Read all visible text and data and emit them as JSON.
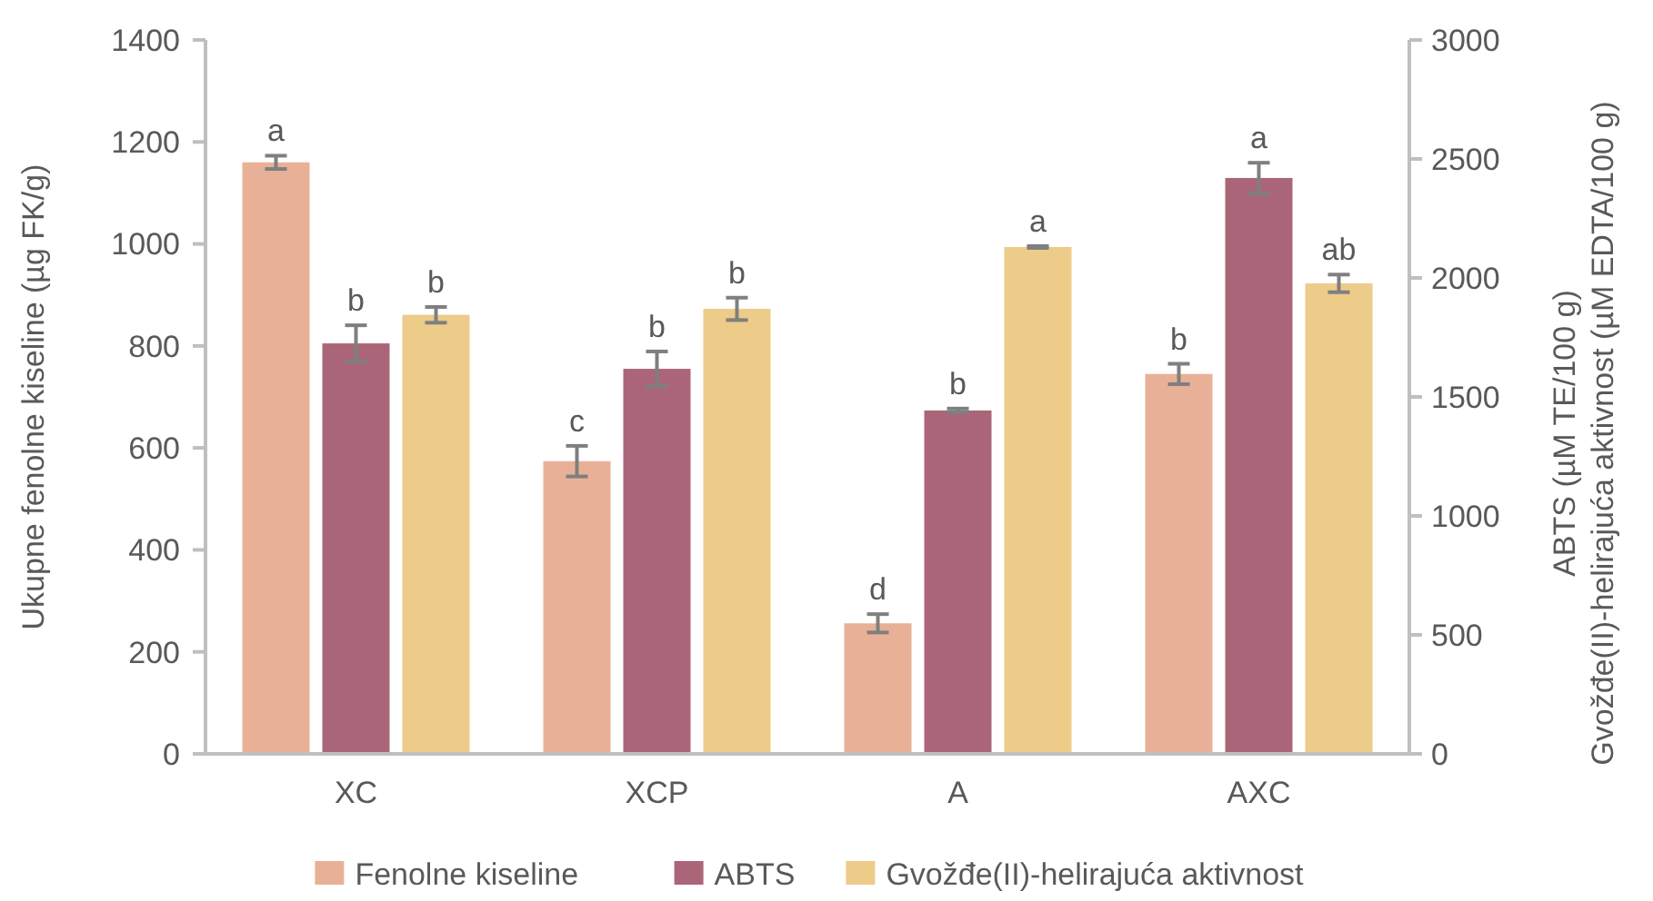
{
  "chart_data": {
    "type": "bar",
    "categories": [
      "XC",
      "XCP",
      "A",
      "AXC"
    ],
    "ylabel": "Ukupne fenolne kiseline (µg FK/g)",
    "y2label": "ABTS (µM TE/100 g)\nGvožđe(II)-helirajuća aktivnost (µM EDTA/100 g)",
    "ylim": [
      0,
      1400
    ],
    "yticks": [
      0,
      200,
      400,
      600,
      800,
      1000,
      1200,
      1400
    ],
    "y2lim": [
      0,
      3000
    ],
    "y2ticks": [
      0,
      500,
      1000,
      1500,
      2000,
      2500,
      3000
    ],
    "grid": false,
    "legend": "bottom",
    "series": [
      {
        "name": "Fenolne kiseline",
        "color": "#e8b197",
        "values": [
          1160,
          574,
          256,
          745
        ],
        "errors": [
          13,
          30,
          18,
          20
        ],
        "value_labels": [
          "a",
          "c",
          "d",
          "b"
        ]
      },
      {
        "name": "ABTS",
        "color": "#aa6678",
        "axis": "y2",
        "values": [
          1725,
          1618,
          1443,
          2420
        ],
        "errors": [
          76,
          73,
          8,
          64
        ],
        "value_labels": [
          "b",
          "b",
          "b",
          "a"
        ]
      },
      {
        "name": "Gvožđe(II)-helirajuća aktivnost",
        "color": "#edcb89",
        "axis": "y2",
        "values": [
          1845,
          1870,
          2130,
          1977
        ],
        "errors": [
          33,
          47,
          4,
          37
        ],
        "value_labels": [
          "b",
          "b",
          "a",
          "ab"
        ]
      }
    ]
  }
}
